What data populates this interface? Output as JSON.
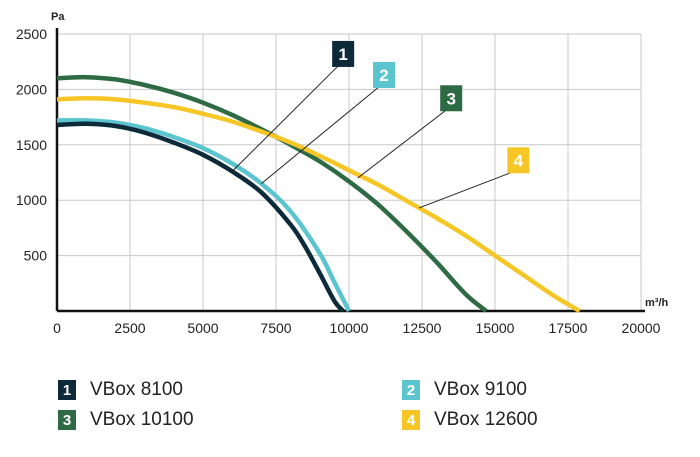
{
  "chart_data": {
    "type": "line",
    "title": "",
    "xlabel": "m³/h",
    "ylabel": "Pa",
    "xlim": [
      0,
      20000
    ],
    "ylim": [
      0,
      2500
    ],
    "xticks": [
      0,
      2500,
      5000,
      7500,
      10000,
      12500,
      15000,
      17500,
      20000
    ],
    "yticks": [
      500,
      1000,
      1500,
      2000,
      2500
    ],
    "grid": true,
    "series": [
      {
        "id": "1",
        "name": "VBox 8100",
        "color": "#0d2a3a",
        "x": [
          0,
          1000,
          2000,
          3000,
          4000,
          5000,
          6000,
          7000,
          8000,
          8500,
          9000,
          9500,
          9800
        ],
        "y": [
          1680,
          1690,
          1670,
          1610,
          1520,
          1410,
          1260,
          1070,
          780,
          580,
          340,
          90,
          0
        ]
      },
      {
        "id": "2",
        "name": "VBox 9100",
        "color": "#5bc4cf",
        "x": [
          0,
          1000,
          2000,
          3000,
          4000,
          5000,
          6000,
          7000,
          8000,
          9000,
          9500,
          10000
        ],
        "y": [
          1720,
          1720,
          1700,
          1650,
          1570,
          1470,
          1330,
          1150,
          900,
          520,
          260,
          0
        ]
      },
      {
        "id": "3",
        "name": "VBox 10100",
        "color": "#2e6b45",
        "x": [
          0,
          1000,
          2000,
          3000,
          4000,
          5000,
          6000,
          7000,
          8000,
          9000,
          10000,
          11000,
          12000,
          13000,
          14000,
          14700
        ],
        "y": [
          2100,
          2110,
          2090,
          2040,
          1970,
          1880,
          1770,
          1640,
          1500,
          1350,
          1170,
          960,
          710,
          440,
          150,
          0
        ]
      },
      {
        "id": "4",
        "name": "VBox 12600",
        "color": "#f5c625",
        "x": [
          0,
          1000,
          2000,
          3000,
          4000,
          5000,
          6000,
          7000,
          8000,
          9000,
          10000,
          11000,
          12000,
          13000,
          14000,
          15000,
          16000,
          17000,
          17900
        ],
        "y": [
          1910,
          1920,
          1910,
          1880,
          1840,
          1780,
          1710,
          1620,
          1520,
          1400,
          1270,
          1140,
          990,
          840,
          680,
          500,
          320,
          140,
          0
        ]
      }
    ],
    "callouts": [
      {
        "label": "1",
        "series": 0,
        "point_x": 6000,
        "point_y": 1260,
        "badge_x": 9800,
        "badge_y": 2320
      },
      {
        "label": "2",
        "series": 1,
        "point_x": 7000,
        "point_y": 1150,
        "badge_x": 11200,
        "badge_y": 2130
      },
      {
        "label": "3",
        "series": 2,
        "point_x": 10300,
        "point_y": 1200,
        "badge_x": 13500,
        "badge_y": 1920
      },
      {
        "label": "4",
        "series": 3,
        "point_x": 12400,
        "point_y": 930,
        "badge_x": 15800,
        "badge_y": 1360
      }
    ]
  },
  "legend": [
    {
      "num": "1",
      "label": "VBox 8100",
      "color": "#0d2a3a"
    },
    {
      "num": "2",
      "label": "VBox 9100",
      "color": "#5bc4cf"
    },
    {
      "num": "3",
      "label": "VBox 10100",
      "color": "#2e6b45"
    },
    {
      "num": "4",
      "label": "VBox 12600",
      "color": "#f5c625"
    }
  ]
}
